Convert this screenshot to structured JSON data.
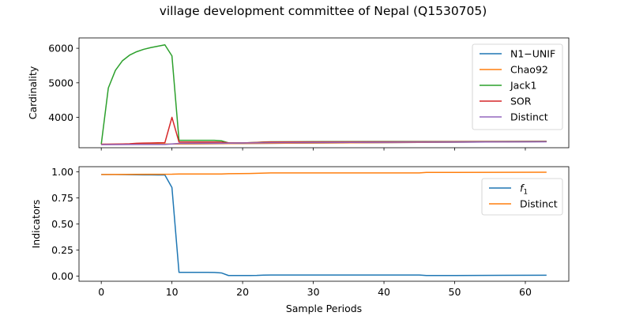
{
  "title": "village development committee of Nepal (Q1530705)",
  "chart_data": [
    {
      "type": "line",
      "title": "",
      "xlabel": "",
      "ylabel": "Cardinality",
      "xlim": [
        -3.15,
        66.15
      ],
      "ylim": [
        3120,
        6300
      ],
      "xticks": [
        0,
        10,
        20,
        30,
        40,
        50,
        60
      ],
      "yticks": [
        4000,
        5000,
        6000
      ],
      "show_xtick_labels": false,
      "grid": false,
      "legend": "top-right",
      "series": [
        {
          "name": "N1−UNIF",
          "color": "#1f77b4",
          "x": [
            0,
            63
          ],
          "y": [
            3218,
            3297
          ]
        },
        {
          "name": "Chao92",
          "color": "#ff7f0e",
          "x": [
            0,
            63
          ],
          "y": [
            3218,
            3297
          ]
        },
        {
          "name": "Jack1",
          "color": "#2ca02c",
          "x": [
            0,
            1,
            2,
            3,
            4,
            5,
            6,
            7,
            8,
            9,
            10,
            11,
            12,
            13,
            14,
            15,
            16,
            17,
            18,
            19,
            20,
            21,
            22,
            23,
            24,
            30,
            40,
            50,
            63
          ],
          "y": [
            3220,
            4850,
            5360,
            5640,
            5800,
            5900,
            5970,
            6020,
            6060,
            6100,
            5780,
            3335,
            3335,
            3335,
            3335,
            3335,
            3335,
            3320,
            3260,
            3258,
            3258,
            3265,
            3275,
            3285,
            3292,
            3296,
            3300,
            3300,
            3305
          ]
        },
        {
          "name": "SOR",
          "color": "#d62728",
          "x": [
            0,
            1,
            2,
            3,
            4,
            5,
            6,
            7,
            8,
            9,
            10,
            11,
            12,
            13,
            14,
            15,
            16,
            17,
            18,
            19,
            20,
            21,
            22,
            23,
            24,
            30,
            40,
            50,
            63
          ],
          "y": [
            3222,
            3222,
            3225,
            3230,
            3235,
            3250,
            3255,
            3258,
            3262,
            3265,
            4000,
            3285,
            3285,
            3285,
            3285,
            3285,
            3285,
            3280,
            3262,
            3260,
            3260,
            3265,
            3272,
            3280,
            3287,
            3290,
            3292,
            3294,
            3300
          ]
        },
        {
          "name": "Distinct",
          "color": "#9467bd",
          "x": [
            0,
            5,
            9,
            10,
            11,
            17,
            18,
            24,
            30,
            40,
            50,
            63
          ],
          "y": [
            3210,
            3213,
            3215,
            3230,
            3245,
            3250,
            3252,
            3265,
            3272,
            3278,
            3284,
            3292
          ]
        }
      ]
    },
    {
      "type": "line",
      "title": "",
      "xlabel": "Sample Periods",
      "ylabel": "Indicators",
      "xlim": [
        -3.15,
        66.15
      ],
      "ylim": [
        -0.05,
        1.05
      ],
      "xticks": [
        0,
        10,
        20,
        30,
        40,
        50,
        60
      ],
      "yticks": [
        0.0,
        0.25,
        0.5,
        0.75,
        1.0
      ],
      "ytick_labels": [
        "0.00",
        "0.25",
        "0.50",
        "0.75",
        "1.00"
      ],
      "show_xtick_labels": true,
      "grid": false,
      "legend": "top-right",
      "series": [
        {
          "name": "f1",
          "color": "#1f77b4",
          "x": [
            0,
            1,
            2,
            3,
            4,
            5,
            6,
            7,
            8,
            9,
            10,
            11,
            12,
            13,
            14,
            15,
            16,
            17,
            18,
            19,
            20,
            21,
            22,
            23,
            24,
            30,
            40,
            45,
            46,
            50,
            63
          ],
          "y": [
            0.975,
            0.975,
            0.975,
            0.974,
            0.973,
            0.972,
            0.971,
            0.971,
            0.97,
            0.97,
            0.85,
            0.035,
            0.035,
            0.035,
            0.035,
            0.035,
            0.034,
            0.03,
            0.005,
            0.005,
            0.005,
            0.005,
            0.006,
            0.009,
            0.01,
            0.01,
            0.01,
            0.01,
            0.005,
            0.005,
            0.008
          ]
        },
        {
          "name": "Distinct",
          "color": "#ff7f0e",
          "x": [
            0,
            10,
            11,
            17,
            18,
            21,
            24,
            30,
            40,
            45,
            46,
            50,
            63
          ],
          "y": [
            0.975,
            0.978,
            0.98,
            0.98,
            0.983,
            0.985,
            0.99,
            0.99,
            0.99,
            0.99,
            0.995,
            0.995,
            0.997
          ]
        }
      ]
    }
  ]
}
